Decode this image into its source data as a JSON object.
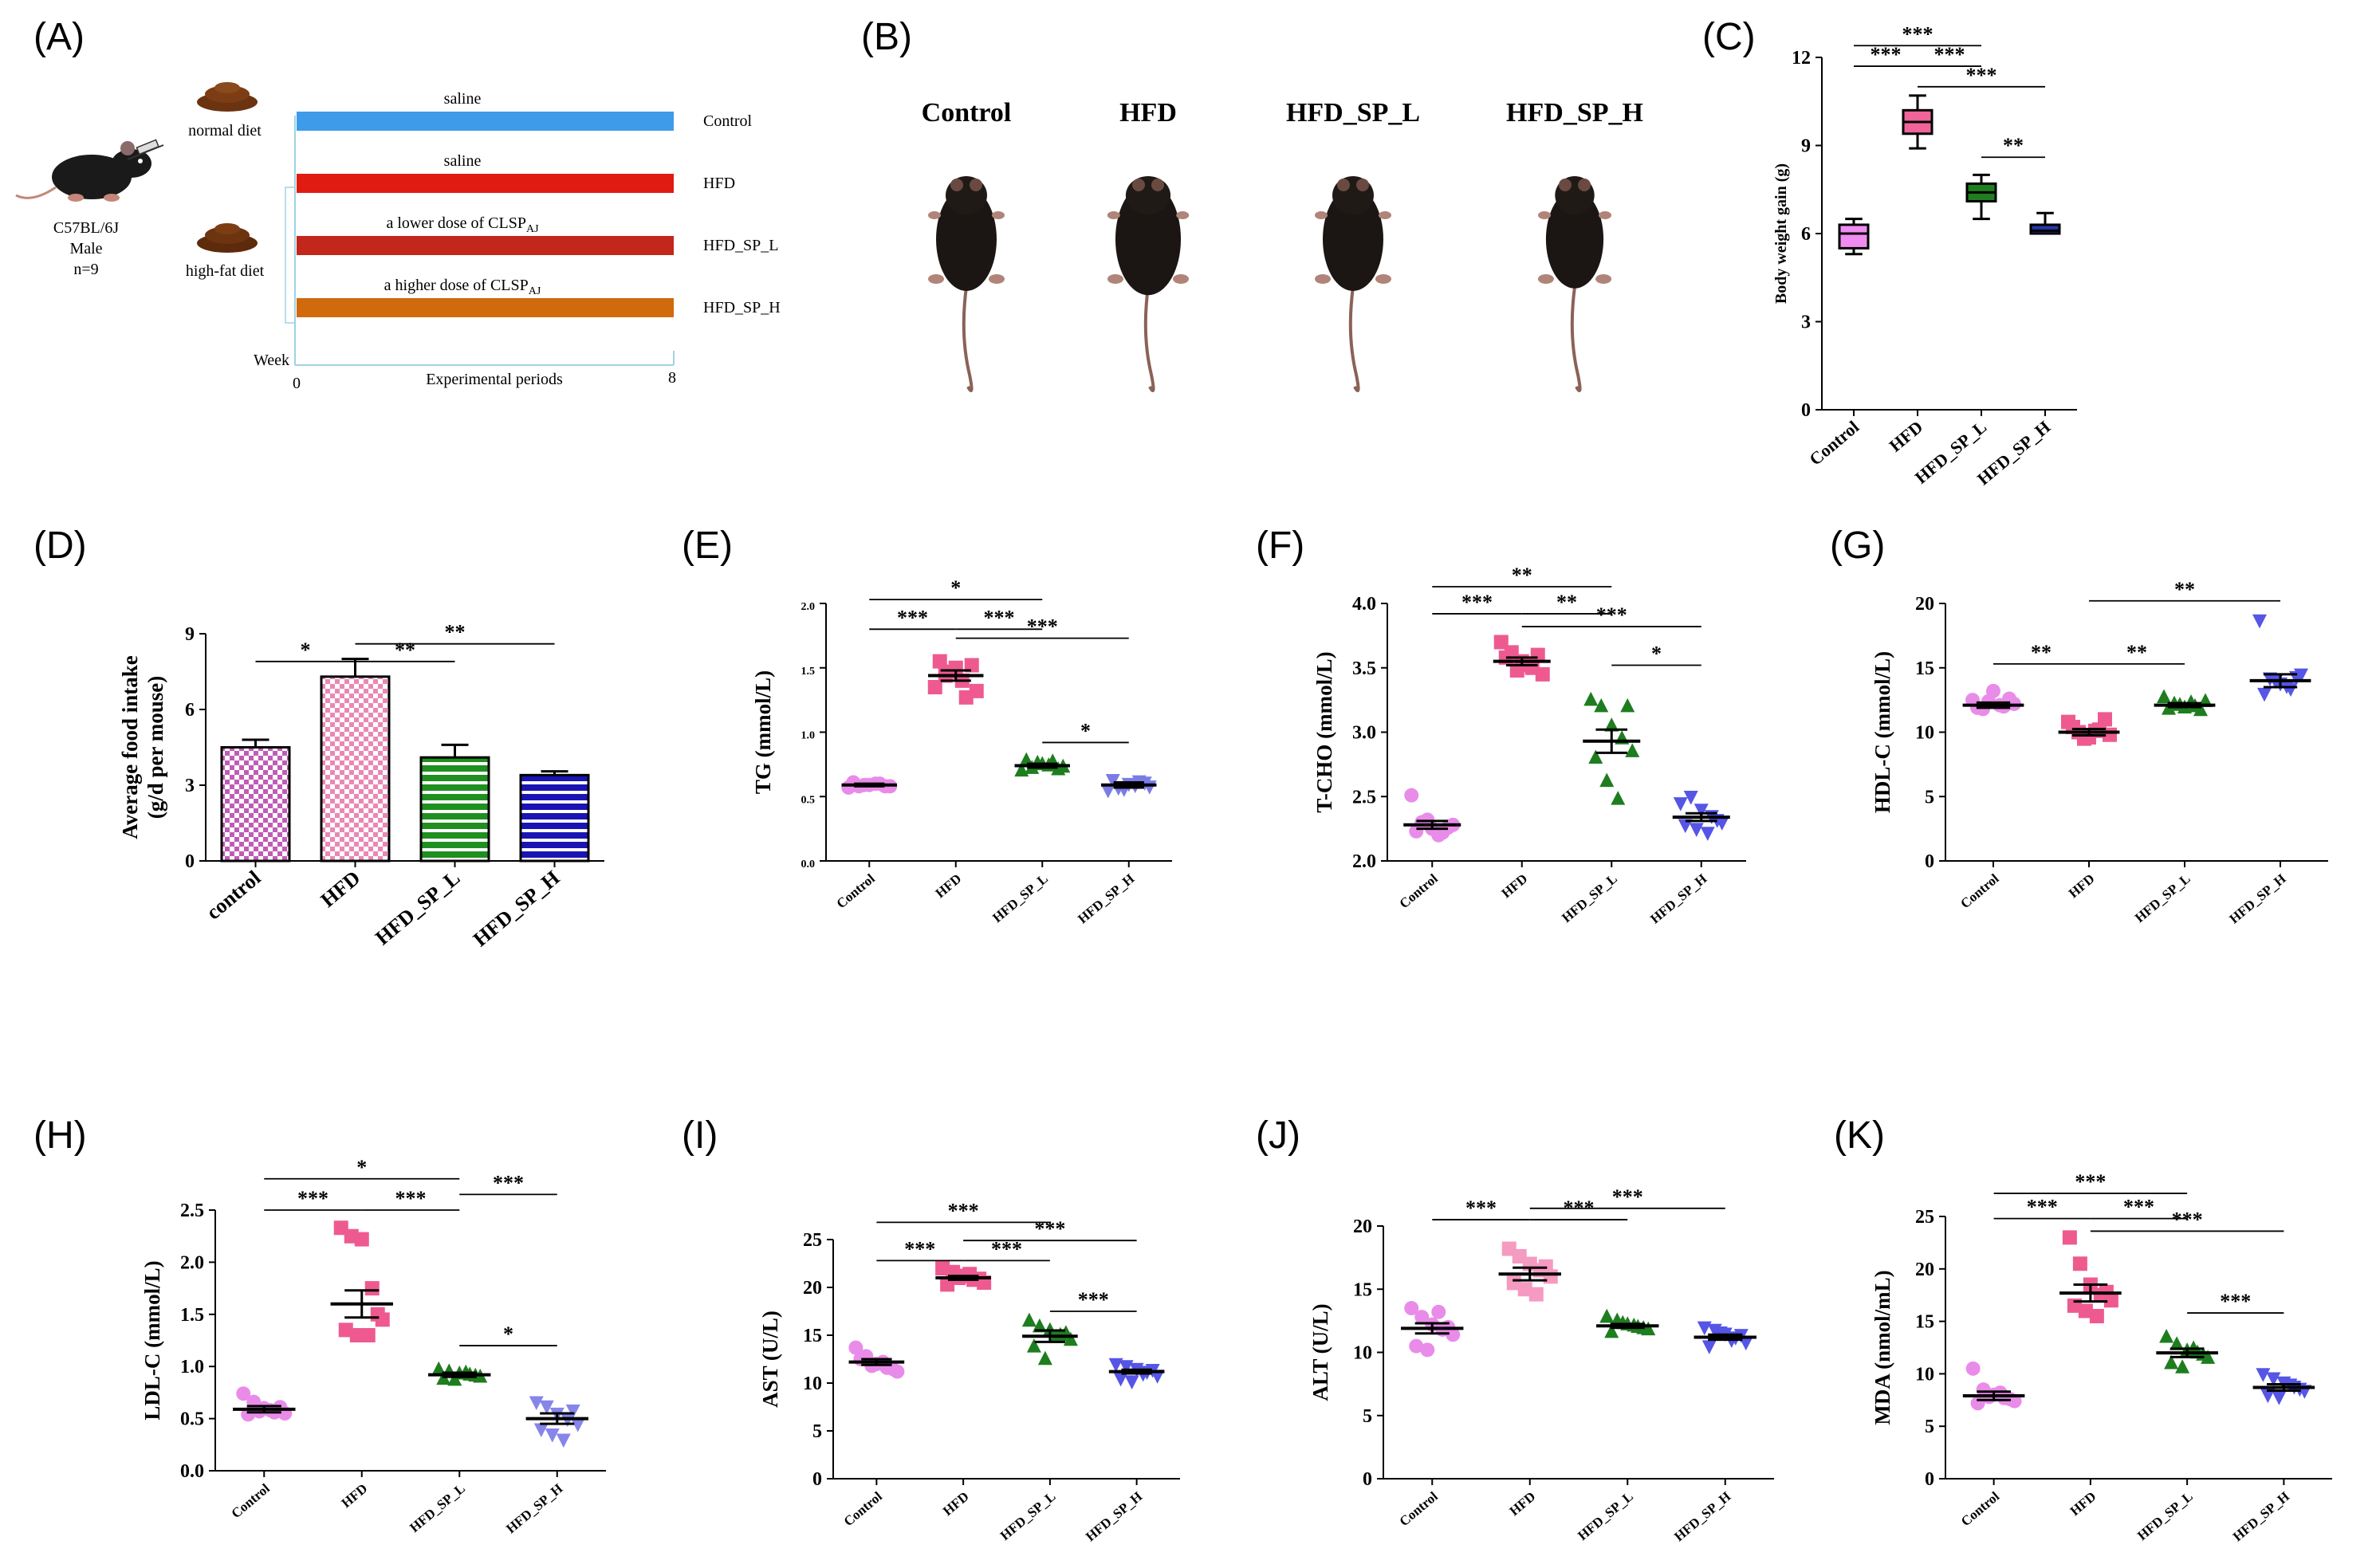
{
  "panels": [
    "(A)",
    "(B)",
    "(C)",
    "(D)",
    "(E)",
    "(F)",
    "(G)",
    "(H)",
    "(I)",
    "(J)",
    "(K)"
  ],
  "schematic": {
    "strain": [
      "C57BL/6J",
      "Male",
      "n=9"
    ],
    "normal_diet": "normal diet",
    "high_fat_diet": "high-fat diet",
    "bars": [
      {
        "above": "saline",
        "label": "Control",
        "color": "#3d9be9"
      },
      {
        "above": "saline",
        "label": "HFD",
        "color": "#e01b12"
      },
      {
        "above": "a lower dose of CLSP",
        "sub": "AJ",
        "label": "HFD_SP_L",
        "color": "#c3261a"
      },
      {
        "above": "a higher dose of CLSP",
        "sub": "AJ",
        "label": "HFD_SP_H",
        "color": "#d06a0d"
      }
    ],
    "week": "Week",
    "start": "0",
    "end": "8",
    "axis_title": "Experimental periods"
  },
  "photos": {
    "labels": [
      "Control",
      "HFD",
      "HFD_SP_L",
      "HFD_SP_H"
    ]
  },
  "group_colors": [
    "#e98ce9",
    "#ee5a8f",
    "#1e7d1e",
    "#3b3bd6"
  ],
  "chart_data": [
    {
      "id": "C",
      "type": "box",
      "title": "",
      "ylabel": "Body weight gain (g)",
      "categories": [
        "Control",
        "HFD",
        "HFD_SP_L",
        "HFD_SP_H"
      ],
      "ylim": [
        0,
        12
      ],
      "yticks": [
        "0",
        "3",
        "6",
        "9",
        "12"
      ],
      "colors": [
        "#f08cf0",
        "#f0649a",
        "#1f7e1f",
        "#2637a3"
      ],
      "boxes": [
        {
          "min": 5.3,
          "q1": 5.5,
          "median": 6.0,
          "q3": 6.3,
          "max": 6.5
        },
        {
          "min": 8.9,
          "q1": 9.4,
          "median": 9.8,
          "q3": 10.2,
          "max": 10.7
        },
        {
          "min": 6.5,
          "q1": 7.1,
          "median": 7.4,
          "q3": 7.7,
          "max": 8.0
        },
        {
          "min": 6.0,
          "q1": 6.0,
          "median": 6.1,
          "q3": 6.3,
          "max": 6.7
        }
      ],
      "sig": [
        {
          "from": 0,
          "to": 1,
          "text": "***",
          "y": 11.7
        },
        {
          "from": 1,
          "to": 2,
          "text": "***",
          "y": 11.7
        },
        {
          "from": 0,
          "to": 2,
          "text": "***",
          "y": 12.4
        },
        {
          "from": 1,
          "to": 3,
          "text": "***",
          "y": 11.0
        },
        {
          "from": 2,
          "to": 3,
          "text": "**",
          "y": 8.6
        }
      ]
    },
    {
      "id": "D",
      "type": "bar",
      "ylabel": "Average food intake (g/d per mouse)",
      "categories": [
        "control",
        "HFD",
        "HFD_SP_L",
        "HFD_SP_H"
      ],
      "ylim": [
        0,
        9
      ],
      "yticks": [
        "0",
        "3",
        "6",
        "9"
      ],
      "values": [
        4.5,
        7.3,
        4.1,
        3.4
      ],
      "errors": [
        0.3,
        0.7,
        0.5,
        0.15
      ],
      "colors": [
        "#c05cb6",
        "#ea88b5",
        "#1f8f1f",
        "#1a14b4"
      ],
      "patterns": [
        "check",
        "check",
        "hline",
        "hline"
      ],
      "sig": [
        {
          "from": 0,
          "to": 1,
          "text": "*",
          "y": 7.9
        },
        {
          "from": 1,
          "to": 2,
          "text": "**",
          "y": 7.9
        },
        {
          "from": 1,
          "to": 3,
          "text": "**",
          "y": 8.6
        }
      ]
    },
    {
      "id": "E",
      "type": "scatter",
      "ylabel": "TG (mmol/L)",
      "categories": [
        "Control",
        "HFD",
        "HFD_SP_L",
        "HFD_SP_H"
      ],
      "ylim": [
        0,
        2.0
      ],
      "yticks": [
        "0.0",
        "0.5",
        "1.0",
        "1.5",
        "2.0"
      ],
      "markers": [
        "circle",
        "square",
        "triangle",
        "triangle-down"
      ],
      "colors": [
        "#e98ce9",
        "#ee5a8f",
        "#1e7d1e",
        "#7b7be8"
      ],
      "points": [
        [
          0.57,
          0.58,
          0.59,
          0.6,
          0.58,
          0.61,
          0.59,
          0.6,
          0.58
        ],
        [
          1.35,
          1.44,
          1.5,
          1.27,
          1.32,
          1.55,
          1.47,
          1.4,
          1.52
        ],
        [
          0.7,
          0.72,
          0.75,
          0.77,
          0.73,
          0.78,
          0.76,
          0.74,
          0.71
        ],
        [
          0.55,
          0.57,
          0.6,
          0.62,
          0.58,
          0.63,
          0.56,
          0.59,
          0.61
        ]
      ],
      "means": [
        0.59,
        1.44,
        0.74,
        0.59
      ],
      "sems": [
        0.01,
        0.04,
        0.015,
        0.02
      ],
      "sig": [
        {
          "from": 0,
          "to": 1,
          "text": "***",
          "y": 1.8
        },
        {
          "from": 1,
          "to": 2,
          "text": "***",
          "y": 1.8
        },
        {
          "from": 0,
          "to": 2,
          "text": "*",
          "y": 2.03
        },
        {
          "from": 1,
          "to": 3,
          "text": "***",
          "y": 1.73
        },
        {
          "from": 2,
          "to": 3,
          "text": "*",
          "y": 0.92
        }
      ]
    },
    {
      "id": "F",
      "type": "scatter",
      "ylabel": "T-CHO (mmol/L)",
      "categories": [
        "Control",
        "HFD",
        "HFD_SP_L",
        "HFD_SP_H"
      ],
      "ylim": [
        2.0,
        4.0
      ],
      "yticks": [
        "2.0",
        "2.5",
        "3.0",
        "3.5",
        "4.0"
      ],
      "markers": [
        "circle",
        "square",
        "triangle",
        "triangle-down"
      ],
      "colors": [
        "#e98ce9",
        "#ee5a8f",
        "#1e7d1e",
        "#5555e6"
      ],
      "points": [
        [
          2.51,
          2.3,
          2.25,
          2.22,
          2.28,
          2.23,
          2.32,
          2.2,
          2.26
        ],
        [
          3.7,
          3.62,
          3.55,
          3.5,
          3.45,
          3.58,
          3.48,
          3.52,
          3.6
        ],
        [
          3.25,
          3.2,
          3.05,
          2.95,
          2.85,
          2.8,
          2.62,
          2.48,
          3.2
        ],
        [
          2.45,
          2.5,
          2.4,
          2.35,
          2.3,
          2.28,
          2.25,
          2.22,
          2.32
        ]
      ],
      "means": [
        2.28,
        3.55,
        2.93,
        2.34
      ],
      "sems": [
        0.03,
        0.03,
        0.09,
        0.03
      ],
      "sig": [
        {
          "from": 0,
          "to": 1,
          "text": "***",
          "y": 3.92
        },
        {
          "from": 1,
          "to": 2,
          "text": "**",
          "y": 3.92
        },
        {
          "from": 0,
          "to": 2,
          "text": "**",
          "y": 4.13
        },
        {
          "from": 1,
          "to": 3,
          "text": "***",
          "y": 3.82
        },
        {
          "from": 2,
          "to": 3,
          "text": "*",
          "y": 3.52
        }
      ]
    },
    {
      "id": "G",
      "type": "scatter",
      "ylabel": "HDL-C (mmol/L)",
      "categories": [
        "Control",
        "HFD",
        "HFD_SP_L",
        "HFD_SP_H"
      ],
      "ylim": [
        0,
        20
      ],
      "yticks": [
        "0",
        "5",
        "10",
        "15",
        "20"
      ],
      "markers": [
        "circle",
        "square",
        "triangle",
        "triangle-down"
      ],
      "colors": [
        "#e98ce9",
        "#ee5a8f",
        "#1e7d1e",
        "#5555e6"
      ],
      "points": [
        [
          12.5,
          11.8,
          13.2,
          12.0,
          12.2,
          11.9,
          12.4,
          12.1,
          12.6
        ],
        [
          10.8,
          10.0,
          9.6,
          10.2,
          9.8,
          10.4,
          9.5,
          10.1,
          11.0
        ],
        [
          12.7,
          12.2,
          11.9,
          12.0,
          12.4,
          11.8,
          12.1,
          12.3,
          11.7
        ],
        [
          18.7,
          14.2,
          13.8,
          13.4,
          14.5,
          13.0,
          14.0,
          13.6,
          14.3
        ]
      ],
      "means": [
        12.1,
        10.0,
        12.1,
        14.0
      ],
      "sems": [
        0.2,
        0.25,
        0.15,
        0.5
      ],
      "sig": [
        {
          "from": 0,
          "to": 1,
          "text": "**",
          "y": 15.3
        },
        {
          "from": 1,
          "to": 2,
          "text": "**",
          "y": 15.3
        },
        {
          "from": 1,
          "to": 3,
          "text": "**",
          "y": 20.2
        }
      ]
    },
    {
      "id": "H",
      "type": "scatter",
      "ylabel": "LDL-C (mmol/L)",
      "categories": [
        "Control",
        "HFD",
        "HFD_SP_L",
        "HFD_SP_H"
      ],
      "ylim": [
        0,
        2.5
      ],
      "yticks": [
        "0.0",
        "0.5",
        "1.0",
        "1.5",
        "2.0",
        "2.5"
      ],
      "markers": [
        "circle",
        "square",
        "triangle",
        "triangle-down"
      ],
      "colors": [
        "#e98ce9",
        "#ee5a8f",
        "#1e7d1e",
        "#8585ea"
      ],
      "points": [
        [
          0.74,
          0.66,
          0.6,
          0.56,
          0.55,
          0.54,
          0.57,
          0.58,
          0.61
        ],
        [
          2.33,
          2.25,
          2.22,
          1.75,
          1.45,
          1.35,
          1.3,
          1.3,
          1.5
        ],
        [
          0.97,
          0.95,
          0.93,
          0.92,
          0.9,
          0.88,
          0.87,
          0.94,
          0.91
        ],
        [
          0.66,
          0.62,
          0.55,
          0.5,
          0.45,
          0.4,
          0.35,
          0.3,
          0.58
        ]
      ],
      "means": [
        0.59,
        1.6,
        0.92,
        0.5
      ],
      "sems": [
        0.03,
        0.13,
        0.02,
        0.05
      ],
      "sig": [
        {
          "from": 0,
          "to": 1,
          "text": "***",
          "y": 2.5
        },
        {
          "from": 1,
          "to": 2,
          "text": "***",
          "y": 2.5
        },
        {
          "from": 0,
          "to": 2,
          "text": "*",
          "y": 2.8
        },
        {
          "from": 2,
          "to": 3,
          "text": "***",
          "y": 2.65
        },
        {
          "from": 2,
          "to": 3,
          "text": "*",
          "y": 1.2
        }
      ]
    },
    {
      "id": "I",
      "type": "scatter",
      "ylabel": "AST (U/L)",
      "categories": [
        "Control",
        "HFD",
        "HFD_SP_L",
        "HFD_SP_H"
      ],
      "ylim": [
        0,
        25
      ],
      "yticks": [
        "0",
        "5",
        "10",
        "15",
        "20",
        "25"
      ],
      "markers": [
        "circle",
        "square",
        "triangle",
        "triangle-down"
      ],
      "colors": [
        "#e98ce9",
        "#ee5a8f",
        "#1e7d1e",
        "#5555e6"
      ],
      "points": [
        [
          13.7,
          12.8,
          12.0,
          11.6,
          11.2,
          12.5,
          11.8,
          12.2,
          11.5
        ],
        [
          22.0,
          21.6,
          21.2,
          20.8,
          20.5,
          20.3,
          21.0,
          21.4,
          20.9
        ],
        [
          16.5,
          15.9,
          15.5,
          15.0,
          14.5,
          13.8,
          12.5,
          14.8,
          15.2
        ],
        [
          12.0,
          11.8,
          11.5,
          11.2,
          10.8,
          10.5,
          10.2,
          11.0,
          11.4
        ]
      ],
      "means": [
        12.2,
        21.0,
        14.9,
        11.2
      ],
      "sems": [
        0.3,
        0.2,
        0.6,
        0.2
      ],
      "sig": [
        {
          "from": 0,
          "to": 1,
          "text": "***",
          "y": 22.8
        },
        {
          "from": 1,
          "to": 2,
          "text": "***",
          "y": 22.8
        },
        {
          "from": 0,
          "to": 2,
          "text": "***",
          "y": 26.8
        },
        {
          "from": 1,
          "to": 3,
          "text": "***",
          "y": 24.9
        },
        {
          "from": 2,
          "to": 3,
          "text": "***",
          "y": 17.5
        }
      ]
    },
    {
      "id": "J",
      "type": "scatter",
      "ylabel": "ALT (U/L)",
      "categories": [
        "Control",
        "HFD",
        "HFD_SP_L",
        "HFD_SP_H"
      ],
      "ylim": [
        0,
        20
      ],
      "yticks": [
        "0",
        "5",
        "10",
        "15",
        "20"
      ],
      "markers": [
        "circle",
        "square",
        "triangle",
        "triangle-down"
      ],
      "colors": [
        "#e98ce9",
        "#f59ac0",
        "#1e7d1e",
        "#5555e6"
      ],
      "points": [
        [
          13.5,
          12.8,
          12.2,
          11.8,
          11.4,
          10.5,
          10.2,
          13.2,
          12.0
        ],
        [
          18.2,
          17.6,
          17.0,
          16.5,
          16.0,
          15.5,
          15.0,
          14.6,
          16.8
        ],
        [
          12.8,
          12.5,
          12.2,
          12.0,
          11.8,
          11.6,
          12.3,
          12.1,
          11.9
        ],
        [
          12.0,
          11.8,
          11.5,
          11.2,
          10.8,
          10.5,
          11.6,
          11.0,
          11.4
        ]
      ],
      "means": [
        11.9,
        16.2,
        12.1,
        11.2
      ],
      "sems": [
        0.4,
        0.5,
        0.15,
        0.2
      ],
      "sig": [
        {
          "from": 0,
          "to": 1,
          "text": "***",
          "y": 20.5
        },
        {
          "from": 1,
          "to": 2,
          "text": "***",
          "y": 20.5
        },
        {
          "from": 1,
          "to": 3,
          "text": "***",
          "y": 21.4
        }
      ]
    },
    {
      "id": "K",
      "type": "scatter",
      "ylabel": "MDA (nmol/mL)",
      "categories": [
        "Control",
        "HFD",
        "HFD_SP_L",
        "HFD_SP_H"
      ],
      "ylim": [
        0,
        25
      ],
      "yticks": [
        "0",
        "5",
        "10",
        "15",
        "20",
        "25"
      ],
      "markers": [
        "circle",
        "square",
        "triangle",
        "triangle-down"
      ],
      "colors": [
        "#e98ce9",
        "#ee5a8f",
        "#1e7d1e",
        "#5555e6"
      ],
      "points": [
        [
          10.5,
          8.5,
          8.0,
          7.7,
          7.4,
          7.2,
          7.8,
          8.2,
          7.6
        ],
        [
          23.0,
          20.5,
          18.5,
          17.5,
          17.0,
          16.5,
          16.0,
          15.5,
          17.8
        ],
        [
          13.5,
          12.8,
          12.2,
          12.0,
          11.5,
          11.0,
          10.6,
          12.4,
          11.8
        ],
        [
          10.0,
          9.6,
          9.2,
          8.8,
          8.4,
          8.0,
          7.8,
          9.0,
          8.6
        ]
      ],
      "means": [
        7.9,
        17.7,
        12.0,
        8.7
      ],
      "sems": [
        0.4,
        0.8,
        0.4,
        0.3
      ],
      "sig": [
        {
          "from": 0,
          "to": 1,
          "text": "***",
          "y": 24.8
        },
        {
          "from": 1,
          "to": 2,
          "text": "***",
          "y": 24.8
        },
        {
          "from": 0,
          "to": 2,
          "text": "***",
          "y": 27.2
        },
        {
          "from": 1,
          "to": 3,
          "text": "***",
          "y": 23.6
        },
        {
          "from": 2,
          "to": 3,
          "text": "***",
          "y": 15.8
        }
      ]
    }
  ]
}
